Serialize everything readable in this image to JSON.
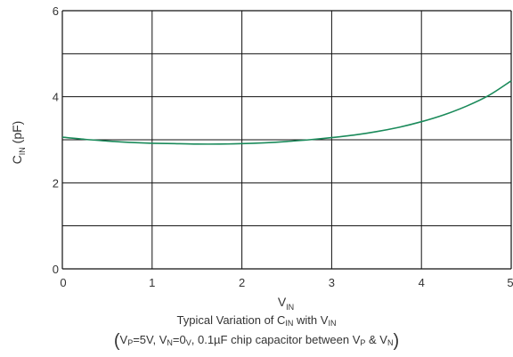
{
  "chart_data": {
    "type": "line",
    "xlabel": {
      "main": "V",
      "sub": "IN"
    },
    "ylabel": {
      "main": "C",
      "sub": "IN",
      "suffix": " (pF)"
    },
    "xlim": [
      0,
      5
    ],
    "ylim": [
      0,
      6
    ],
    "x_ticks": [
      "0",
      "1",
      "2",
      "3",
      "4",
      "5"
    ],
    "y_ticks": [
      "0",
      "2",
      "4",
      "6"
    ],
    "grid": true,
    "line_color": "#1a8a5a",
    "series": [
      {
        "x": [
          0,
          0.25,
          0.5,
          0.75,
          1.0,
          1.25,
          1.5,
          1.75,
          2.0,
          2.25,
          2.5,
          2.75,
          3.0,
          3.25,
          3.5,
          3.75,
          4.0,
          4.25,
          4.5,
          4.75,
          5.0
        ],
        "y": [
          3.06,
          3.01,
          2.97,
          2.94,
          2.92,
          2.91,
          2.9,
          2.9,
          2.91,
          2.93,
          2.96,
          3.0,
          3.05,
          3.11,
          3.19,
          3.29,
          3.42,
          3.58,
          3.78,
          4.03,
          4.37
        ]
      }
    ]
  },
  "caption": {
    "line1": {
      "a": "Typical Variation of C",
      "a_sub": "IN",
      "b": " with V",
      "b_sub": "IN"
    },
    "line2": {
      "open": "(",
      "p1": "V",
      "p1_sub": "P",
      "p1_val": "=5V, ",
      "p2": "V",
      "p2_sub": "N",
      "p2_val": "=0",
      "p2_val_sub": "V",
      "p3": ", 0.1µF chip capacitor between ",
      "p4": "V",
      "p4_sub": "P",
      "p4_mid": " & ",
      "p5": "V",
      "p5_sub": "N",
      "close": ")"
    }
  }
}
